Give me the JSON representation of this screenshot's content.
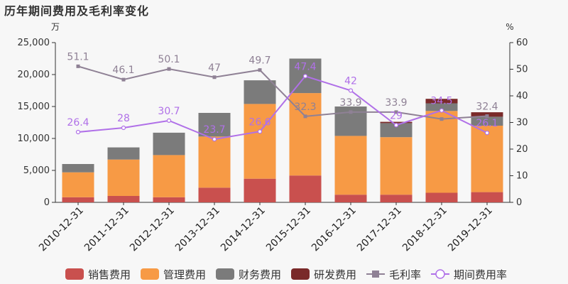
{
  "title": "历年期间费用及毛利率变化",
  "chart_data": {
    "type": "bar",
    "categories": [
      "2010-12-31",
      "2011-12-31",
      "2012-12-31",
      "2013-12-31",
      "2014-12-31",
      "2015-12-31",
      "2016-12-31",
      "2017-12-31",
      "2018-12-31",
      "2019-12-31"
    ],
    "stacked": true,
    "left_unit": "万",
    "right_unit": "%",
    "left_ylim": [
      0,
      25000
    ],
    "left_ticks": [
      "0",
      "5,000",
      "10,000",
      "15,000",
      "20,000",
      "25,000"
    ],
    "right_ylim": [
      0,
      60
    ],
    "right_ticks": [
      "0",
      "10",
      "20",
      "30",
      "40",
      "50",
      "60"
    ],
    "bar_series": [
      {
        "name": "销售费用",
        "color": "#c9504e",
        "values": [
          800,
          1000,
          800,
          2300,
          3700,
          4200,
          1200,
          1200,
          1500,
          1600
        ]
      },
      {
        "name": "管理费用",
        "color": "#f79a45",
        "values": [
          3900,
          5700,
          6600,
          8000,
          11700,
          12900,
          9200,
          9000,
          12800,
          10400
        ]
      },
      {
        "name": "财务费用",
        "color": "#7b7b7b",
        "values": [
          1300,
          1900,
          3500,
          3700,
          3700,
          5400,
          4600,
          2200,
          1200,
          1400
        ]
      },
      {
        "name": "研发费用",
        "color": "#7a2a2a",
        "values": [
          0,
          0,
          0,
          0,
          0,
          0,
          0,
          200,
          700,
          700
        ]
      }
    ],
    "line_series": [
      {
        "name": "毛利率",
        "color": "#8f8195",
        "marker": "square",
        "values": [
          51.1,
          46.1,
          50.1,
          47,
          49.7,
          32.3,
          33.9,
          33.9,
          31.3,
          32.4
        ],
        "labels": [
          "51.1",
          "46.1",
          "50.1",
          "47",
          "49.7",
          "32.3",
          "33.9",
          "33.9",
          "",
          "32.4"
        ]
      },
      {
        "name": "期间费用率",
        "color": "#b070e8",
        "marker": "circle",
        "values": [
          26.4,
          28,
          30.7,
          23.7,
          26.6,
          47.4,
          42,
          29,
          34.5,
          26.1
        ],
        "labels": [
          "26.4",
          "28",
          "30.7",
          "23.7",
          "26.6",
          "47.4",
          "42",
          "29",
          "34.5",
          "26.1"
        ]
      }
    ],
    "legend_position": "bottom"
  }
}
